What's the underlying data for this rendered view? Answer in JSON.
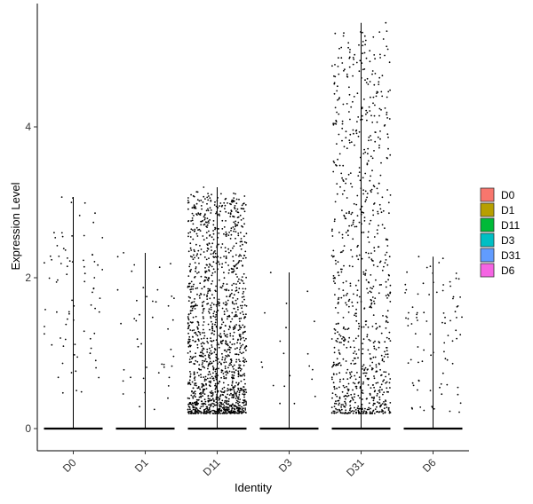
{
  "chart_data": {
    "type": "scatter",
    "subtype": "violin-jitter",
    "xlabel": "Identity",
    "ylabel": "Expression Level",
    "categories": [
      "D0",
      "D1",
      "D11",
      "D3",
      "D31",
      "D6"
    ],
    "y_ticks": [
      0,
      2,
      4
    ],
    "ylim": [
      -0.3,
      5.6
    ],
    "grid": false,
    "x_tick_rotation": -45,
    "legend": {
      "position": "right",
      "entries": [
        {
          "label": "D0",
          "color": "#F8766D"
        },
        {
          "label": "D1",
          "color": "#B79F00"
        },
        {
          "label": "D11",
          "color": "#00BA38"
        },
        {
          "label": "D3",
          "color": "#00BFC4"
        },
        {
          "label": "D31",
          "color": "#619CFF"
        },
        {
          "label": "D6",
          "color": "#F564E3"
        }
      ]
    },
    "series": [
      {
        "name": "D0",
        "max": 3.07,
        "nonzero_points": 80,
        "nonzero_range": [
          0.45,
          3.07
        ],
        "zero_fraction": "most"
      },
      {
        "name": "D1",
        "max": 2.33,
        "nonzero_points": 45,
        "nonzero_range": [
          0.2,
          2.33
        ],
        "zero_fraction": "most"
      },
      {
        "name": "D11",
        "max": 3.2,
        "nonzero_points": 1500,
        "nonzero_range": [
          0.2,
          3.2
        ],
        "zero_fraction": "large"
      },
      {
        "name": "D3",
        "max": 2.07,
        "nonzero_points": 20,
        "nonzero_range": [
          0.2,
          2.07
        ],
        "zero_fraction": "most"
      },
      {
        "name": "D31",
        "max": 5.38,
        "nonzero_points": 900,
        "nonzero_range": [
          0.2,
          5.38
        ],
        "zero_fraction": "large"
      },
      {
        "name": "D6",
        "max": 2.28,
        "nonzero_points": 90,
        "nonzero_range": [
          0.2,
          2.28
        ],
        "zero_fraction": "most"
      }
    ]
  }
}
